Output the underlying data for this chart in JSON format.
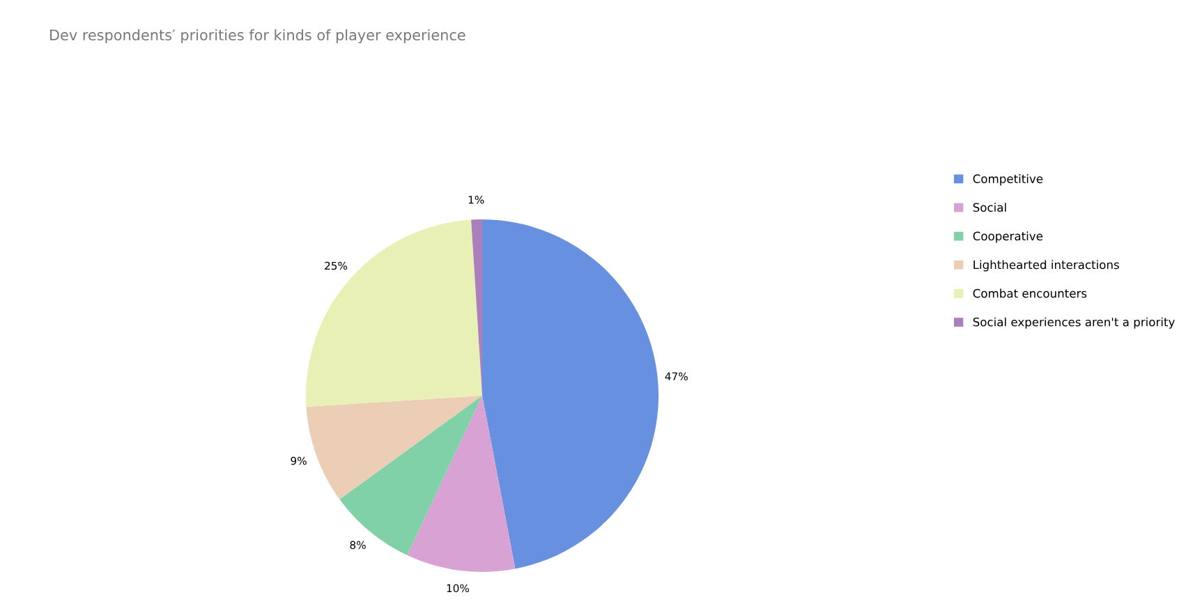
{
  "chart_data": {
    "type": "pie",
    "title": "Dev respondents′ priorities for kinds of player experience",
    "categories": [
      "Competitive",
      "Social",
      "Cooperative",
      "Lighthearted interactions",
      "Combat encounters",
      "Social experiences aren't a priority"
    ],
    "values": [
      47,
      10,
      8,
      9,
      25,
      1
    ],
    "colors": [
      "#6890e0",
      "#d9a2d4",
      "#80d1a8",
      "#eccdb5",
      "#e8f0b6",
      "#ab7fbc"
    ],
    "value_labels": [
      "47%",
      "10%",
      "8%",
      "9%",
      "25%",
      "1%"
    ],
    "legend": "right"
  }
}
